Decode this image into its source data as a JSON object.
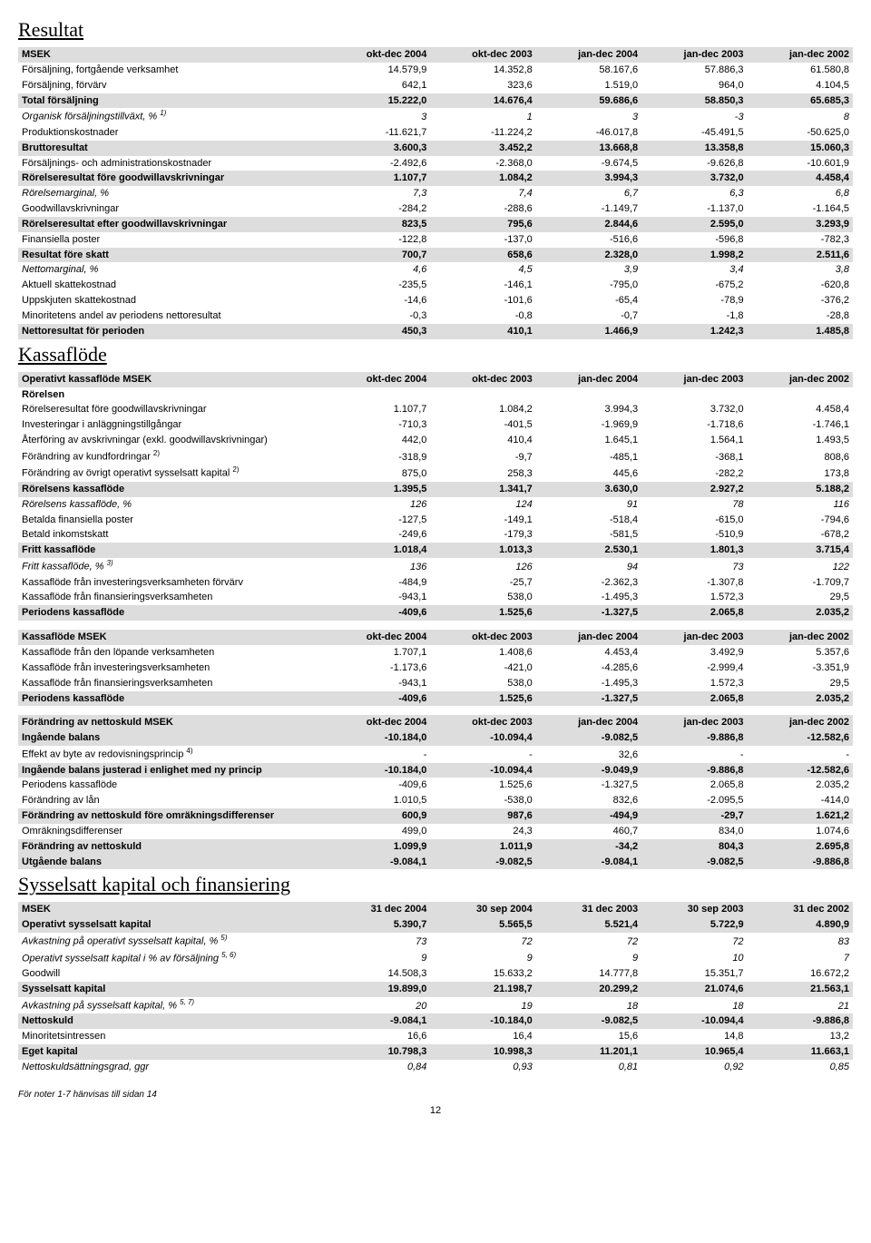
{
  "sections": {
    "resultat": "Resultat",
    "kassaflode": "Kassaflöde",
    "sysselsatt": "Sysselsatt kapital och finansiering"
  },
  "footnote": "För noter 1-7 hänvisas till sidan 14",
  "page_number": "12",
  "table1": {
    "cols": [
      "MSEK",
      "okt-dec 2004",
      "okt-dec 2003",
      "jan-dec 2004",
      "jan-dec 2003",
      "jan-dec 2002"
    ],
    "rows": [
      {
        "l": "Försäljning, fortgående verksamhet",
        "v": [
          "14.579,9",
          "14.352,8",
          "58.167,6",
          "57.886,3",
          "61.580,8"
        ]
      },
      {
        "l": "Försäljning, förvärv",
        "v": [
          "642,1",
          "323,6",
          "1.519,0",
          "964,0",
          "4.104,5"
        ]
      },
      {
        "l": "Total försäljning",
        "v": [
          "15.222,0",
          "14.676,4",
          "59.686,6",
          "58.850,3",
          "65.685,3"
        ],
        "shade": true,
        "bold": true
      },
      {
        "l": "Organisk försäljningstillväxt, % ",
        "sup": "1)",
        "v": [
          "3",
          "1",
          "3",
          "-3",
          "8"
        ],
        "italic": true
      },
      {
        "l": "Produktionskostnader",
        "v": [
          "-11.621,7",
          "-11.224,2",
          "-46.017,8",
          "-45.491,5",
          "-50.625,0"
        ]
      },
      {
        "l": "Bruttoresultat",
        "v": [
          "3.600,3",
          "3.452,2",
          "13.668,8",
          "13.358,8",
          "15.060,3"
        ],
        "shade": true,
        "bold": true
      },
      {
        "l": "Försäljnings- och administrationskostnader",
        "v": [
          "-2.492,6",
          "-2.368,0",
          "-9.674,5",
          "-9.626,8",
          "-10.601,9"
        ]
      },
      {
        "l": "Rörelseresultat före goodwillavskrivningar",
        "v": [
          "1.107,7",
          "1.084,2",
          "3.994,3",
          "3.732,0",
          "4.458,4"
        ],
        "shade": true,
        "bold": true
      },
      {
        "l": "Rörelsemarginal, %",
        "v": [
          "7,3",
          "7,4",
          "6,7",
          "6,3",
          "6,8"
        ],
        "italic": true
      },
      {
        "l": "Goodwillavskrivningar",
        "v": [
          "-284,2",
          "-288,6",
          "-1.149,7",
          "-1.137,0",
          "-1.164,5"
        ]
      },
      {
        "l": "Rörelseresultat efter goodwillavskrivningar",
        "v": [
          "823,5",
          "795,6",
          "2.844,6",
          "2.595,0",
          "3.293,9"
        ],
        "shade": true,
        "bold": true
      },
      {
        "l": "Finansiella poster",
        "v": [
          "-122,8",
          "-137,0",
          "-516,6",
          "-596,8",
          "-782,3"
        ]
      },
      {
        "l": "Resultat före skatt",
        "v": [
          "700,7",
          "658,6",
          "2.328,0",
          "1.998,2",
          "2.511,6"
        ],
        "shade": true,
        "bold": true
      },
      {
        "l": "Nettomarginal, %",
        "v": [
          "4,6",
          "4,5",
          "3,9",
          "3,4",
          "3,8"
        ],
        "italic": true
      },
      {
        "l": "Aktuell skattekostnad",
        "v": [
          "-235,5",
          "-146,1",
          "-795,0",
          "-675,2",
          "-620,8"
        ]
      },
      {
        "l": "Uppskjuten skattekostnad",
        "v": [
          "-14,6",
          "-101,6",
          "-65,4",
          "-78,9",
          "-376,2"
        ]
      },
      {
        "l": "Minoritetens andel av periodens nettoresultat",
        "v": [
          "-0,3",
          "-0,8",
          "-0,7",
          "-1,8",
          "-28,8"
        ]
      },
      {
        "l": "Nettoresultat för perioden",
        "v": [
          "450,3",
          "410,1",
          "1.466,9",
          "1.242,3",
          "1.485,8"
        ],
        "shade": true,
        "bold": true
      }
    ]
  },
  "table2": {
    "cols": [
      "Operativt kassaflöde MSEK",
      "okt-dec 2004",
      "okt-dec 2003",
      "jan-dec 2004",
      "jan-dec 2003",
      "jan-dec 2002"
    ],
    "rows": [
      {
        "l": "Rörelsen",
        "v": [
          "",
          "",
          "",
          "",
          ""
        ],
        "bold": true
      },
      {
        "l": "Rörelseresultat före goodwillavskrivningar",
        "v": [
          "1.107,7",
          "1.084,2",
          "3.994,3",
          "3.732,0",
          "4.458,4"
        ]
      },
      {
        "l": "Investeringar i anläggningstillgångar",
        "v": [
          "-710,3",
          "-401,5",
          "-1.969,9",
          "-1.718,6",
          "-1.746,1"
        ]
      },
      {
        "l": "Återföring av avskrivningar (exkl. goodwillavskrivningar)",
        "v": [
          "442,0",
          "410,4",
          "1.645,1",
          "1.564,1",
          "1.493,5"
        ]
      },
      {
        "l": "Förändring av kundfordringar ",
        "sup": "2)",
        "v": [
          "-318,9",
          "-9,7",
          "-485,1",
          "-368,1",
          "808,6"
        ]
      },
      {
        "l": "Förändring av övrigt operativt sysselsatt kapital ",
        "sup": "2)",
        "v": [
          "875,0",
          "258,3",
          "445,6",
          "-282,2",
          "173,8"
        ]
      },
      {
        "l": "Rörelsens kassaflöde",
        "v": [
          "1.395,5",
          "1.341,7",
          "3.630,0",
          "2.927,2",
          "5.188,2"
        ],
        "shade": true,
        "bold": true
      },
      {
        "l": "Rörelsens kassaflöde, %",
        "v": [
          "126",
          "124",
          "91",
          "78",
          "116"
        ],
        "italic": true
      },
      {
        "l": "Betalda finansiella poster",
        "v": [
          "-127,5",
          "-149,1",
          "-518,4",
          "-615,0",
          "-794,6"
        ]
      },
      {
        "l": "Betald inkomstskatt",
        "v": [
          "-249,6",
          "-179,3",
          "-581,5",
          "-510,9",
          "-678,2"
        ]
      },
      {
        "l": "Fritt kassaflöde",
        "v": [
          "1.018,4",
          "1.013,3",
          "2.530,1",
          "1.801,3",
          "3.715,4"
        ],
        "shade": true,
        "bold": true
      },
      {
        "l": "Fritt kassaflöde, % ",
        "sup": "3)",
        "v": [
          "136",
          "126",
          "94",
          "73",
          "122"
        ],
        "italic": true
      },
      {
        "l": "Kassaflöde från investeringsverksamheten  förvärv",
        "v": [
          "-484,9",
          "-25,7",
          "-2.362,3",
          "-1.307,8",
          "-1.709,7"
        ]
      },
      {
        "l": "Kassaflöde från finansieringsverksamheten",
        "v": [
          "-943,1",
          "538,0",
          "-1.495,3",
          "1.572,3",
          "29,5"
        ]
      },
      {
        "l": "Periodens kassaflöde",
        "v": [
          "-409,6",
          "1.525,6",
          "-1.327,5",
          "2.065,8",
          "2.035,2"
        ],
        "shade": true,
        "bold": true
      }
    ]
  },
  "table3": {
    "cols": [
      "Kassaflöde MSEK",
      "okt-dec 2004",
      "okt-dec 2003",
      "jan-dec 2004",
      "jan-dec 2003",
      "jan-dec 2002"
    ],
    "rows": [
      {
        "l": "Kassaflöde från den löpande verksamheten",
        "v": [
          "1.707,1",
          "1.408,6",
          "4.453,4",
          "3.492,9",
          "5.357,6"
        ]
      },
      {
        "l": "Kassaflöde från investeringsverksamheten",
        "v": [
          "-1.173,6",
          "-421,0",
          "-4.285,6",
          "-2.999,4",
          "-3.351,9"
        ]
      },
      {
        "l": "Kassaflöde från finansieringsverksamheten",
        "v": [
          "-943,1",
          "538,0",
          "-1.495,3",
          "1.572,3",
          "29,5"
        ]
      },
      {
        "l": "Periodens kassaflöde",
        "v": [
          "-409,6",
          "1.525,6",
          "-1.327,5",
          "2.065,8",
          "2.035,2"
        ],
        "shade": true,
        "bold": true
      }
    ]
  },
  "table4": {
    "cols": [
      "Förändring av nettoskuld MSEK",
      "okt-dec 2004",
      "okt-dec 2003",
      "jan-dec 2004",
      "jan-dec 2003",
      "jan-dec 2002"
    ],
    "rows": [
      {
        "l": "Ingående balans",
        "v": [
          "-10.184,0",
          "-10.094,4",
          "-9.082,5",
          "-9.886,8",
          "-12.582,6"
        ],
        "shade": true,
        "bold": true
      },
      {
        "l": "Effekt av byte av redovisningsprincip ",
        "sup": "4)",
        "v": [
          "-",
          "-",
          "32,6",
          "-",
          "-"
        ]
      },
      {
        "l": "Ingående balans justerad i enlighet med ny princip",
        "v": [
          "-10.184,0",
          "-10.094,4",
          "-9.049,9",
          "-9.886,8",
          "-12.582,6"
        ],
        "shade": true,
        "bold": true
      },
      {
        "l": "Periodens kassaflöde",
        "v": [
          "-409,6",
          "1.525,6",
          "-1.327,5",
          "2.065,8",
          "2.035,2"
        ]
      },
      {
        "l": "Förändring av lån",
        "v": [
          "1.010,5",
          "-538,0",
          "832,6",
          "-2.095,5",
          "-414,0"
        ]
      },
      {
        "l": "Förändring av nettoskuld före omräkningsdifferenser",
        "v": [
          "600,9",
          "987,6",
          "-494,9",
          "-29,7",
          "1.621,2"
        ],
        "shade": true,
        "bold": true
      },
      {
        "l": "Omräkningsdifferenser",
        "v": [
          "499,0",
          "24,3",
          "460,7",
          "834,0",
          "1.074,6"
        ]
      },
      {
        "l": "Förändring av nettoskuld",
        "v": [
          "1.099,9",
          "1.011,9",
          "-34,2",
          "804,3",
          "2.695,8"
        ],
        "shade": true,
        "bold": true
      },
      {
        "l": "Utgående balans",
        "v": [
          "-9.084,1",
          "-9.082,5",
          "-9.084,1",
          "-9.082,5",
          "-9.886,8"
        ],
        "shade": true,
        "bold": true
      }
    ]
  },
  "table5": {
    "cols": [
      "MSEK",
      "31 dec 2004",
      "30 sep 2004",
      "31 dec 2003",
      "30 sep 2003",
      "31 dec 2002"
    ],
    "rows": [
      {
        "l": "Operativt sysselsatt kapital",
        "v": [
          "5.390,7",
          "5.565,5",
          "5.521,4",
          "5.722,9",
          "4.890,9"
        ],
        "shade": true,
        "bold": true
      },
      {
        "l": "Avkastning på operativt sysselsatt kapital, % ",
        "sup": "5)",
        "v": [
          "73",
          "72",
          "72",
          "72",
          "83"
        ],
        "italic": true
      },
      {
        "l": "Operativt sysselsatt kapital i % av försäljning ",
        "sup": "5, 6)",
        "v": [
          "9",
          "9",
          "9",
          "10",
          "7"
        ],
        "italic": true
      },
      {
        "l": "Goodwill",
        "v": [
          "14.508,3",
          "15.633,2",
          "14.777,8",
          "15.351,7",
          "16.672,2"
        ]
      },
      {
        "l": "Sysselsatt kapital",
        "v": [
          "19.899,0",
          "21.198,7",
          "20.299,2",
          "21.074,6",
          "21.563,1"
        ],
        "shade": true,
        "bold": true
      },
      {
        "l": "Avkastning på sysselsatt kapital, % ",
        "sup": "5, 7)",
        "v": [
          "20",
          "19",
          "18",
          "18",
          "21"
        ],
        "italic": true
      },
      {
        "l": "Nettoskuld",
        "v": [
          "-9.084,1",
          "-10.184,0",
          "-9.082,5",
          "-10.094,4",
          "-9.886,8"
        ],
        "shade": true,
        "bold": true
      },
      {
        "l": "Minoritetsintressen",
        "v": [
          "16,6",
          "16,4",
          "15,6",
          "14,8",
          "13,2"
        ]
      },
      {
        "l": "Eget kapital",
        "v": [
          "10.798,3",
          "10.998,3",
          "11.201,1",
          "10.965,4",
          "11.663,1"
        ],
        "shade": true,
        "bold": true
      },
      {
        "l": "Nettoskuldsättningsgrad, ggr",
        "v": [
          "0,84",
          "0,93",
          "0,81",
          "0,92",
          "0,85"
        ],
        "italic": true
      }
    ]
  }
}
